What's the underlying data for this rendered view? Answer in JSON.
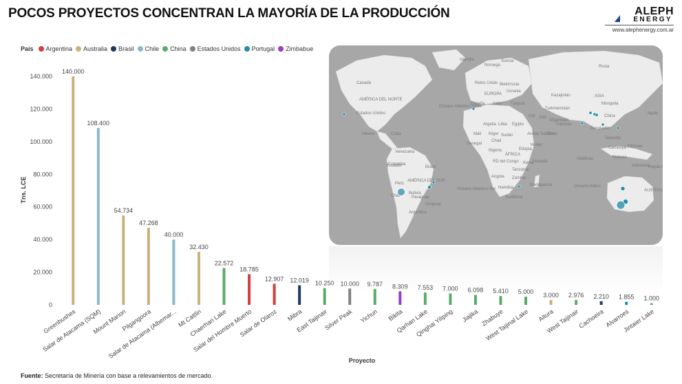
{
  "title": "POCOS PROYECTOS CONCENTRAN LA MAYORÍA DE LA PRODUCCIÓN",
  "logo": {
    "line1": "ALEPH",
    "line2": "ENERGY",
    "url": "www.alephenergy.com.ar"
  },
  "legend": {
    "title": "País",
    "items": [
      {
        "label": "Argentina",
        "color": "#d13f3f"
      },
      {
        "label": "Australia",
        "color": "#c9b27a"
      },
      {
        "label": "Brasil",
        "color": "#1f3a5f"
      },
      {
        "label": "Chile",
        "color": "#8db8c9"
      },
      {
        "label": "China",
        "color": "#5aab6b"
      },
      {
        "label": "Estados Unidos",
        "color": "#808080"
      },
      {
        "label": "Portugal",
        "color": "#1f8ca8"
      },
      {
        "label": "Zimbabue",
        "color": "#9b3bc2"
      }
    ]
  },
  "chart_data": {
    "type": "bar",
    "ylabel": "Tns. LCE",
    "xlabel": "Proyecto",
    "ylim": [
      0,
      140000
    ],
    "yticks": [
      "0",
      "20.000",
      "40.000",
      "60.000",
      "80.000",
      "100.000",
      "120.000",
      "140.000"
    ],
    "ytick_values": [
      0,
      20000,
      40000,
      60000,
      80000,
      100000,
      120000,
      140000
    ],
    "grid": false,
    "legend_position": "top-left",
    "categories": [
      "Greenbushes",
      "Salar de Atacama (SQM)",
      "Mount Marion",
      "Pilgangoora",
      "Salar de Atacama (Albemar...",
      "Mt Cattlin",
      "Chaerhan Lake",
      "Salar del Hombre Muerto",
      "Salar de Olaroz",
      "Mibra",
      "East Taijinair",
      "Silver Peak",
      "Yichun",
      "Bikita",
      "Qarhan Lake",
      "Qinghai Yiliping",
      "Jiajika",
      "Zhabuye",
      "West Taijinal Lake",
      "Altura",
      "West Taijinair",
      "Cachoeira",
      "Alvarroes",
      "Jintaier Lake"
    ],
    "values": [
      140000,
      108400,
      54734,
      47268,
      40000,
      32430,
      22572,
      18785,
      12907,
      12019,
      10250,
      10000,
      9787,
      8309,
      7553,
      7000,
      6098,
      5410,
      5000,
      3000,
      2976,
      2210,
      1855,
      1000
    ],
    "value_labels": [
      "140.000",
      "108.400",
      "54.734",
      "47.268",
      "40.000",
      "32.430",
      "22.572",
      "18.785",
      "12.907",
      "12.019",
      "10.250",
      "10.000",
      "9.787",
      "8.309",
      "7.553",
      "7.000",
      "6.098",
      "5.410",
      "5.000",
      "3.000",
      "2.976",
      "2.210",
      "1.855",
      "1.000"
    ],
    "countries": [
      "Australia",
      "Chile",
      "Australia",
      "Australia",
      "Chile",
      "Australia",
      "China",
      "Argentina",
      "Argentina",
      "Brasil",
      "China",
      "Estados Unidos",
      "China",
      "Zimbabue",
      "China",
      "China",
      "China",
      "China",
      "China",
      "Australia",
      "China",
      "Brasil",
      "Portugal",
      "China"
    ]
  },
  "map": {
    "labels": [
      "Islandia",
      "Rusia",
      "Suecia",
      "Noruega",
      "Reino Unido",
      "Bielorrusia",
      "Canadá",
      "Ucrania",
      "Kazajistán",
      "ASIA",
      "EUROPA",
      "Mongolia",
      "AMÉRICA DEL NORTE",
      "España",
      "Italia",
      "Turquía",
      "Turkmenistán",
      "Océano Atlántico Norte",
      "China",
      "Japón",
      "Estados Unidos",
      "Argelia",
      "Libia",
      "Egipto",
      "Irak",
      "Irán",
      "Afganistán",
      "Pakistán",
      "México",
      "Cuba",
      "Mali",
      "Níger",
      "Sudán",
      "Arabia Saudita",
      "Omán",
      "Bangladés",
      "Tailandia",
      "Senegal",
      "Chad",
      "Yemen",
      "Filipinas",
      "Venezuela",
      "Nigeria",
      "Etiopía",
      "Colombia",
      "Somalia",
      "Camboya",
      "Malasia",
      "Ecuador",
      "RD del Congo",
      "Kenia",
      "Indonesia",
      "ÁFRICA",
      "Tanzania",
      "Maldivas",
      "Brasil",
      "Perú",
      "Angola",
      "Papúa Nueva Guinea",
      "Bolivia",
      "AMÉRICA DEL SUR",
      "Zambia",
      "Namibia",
      "Madagascar",
      "Paraguay",
      "Océano Atlántico Sur",
      "Océano Índico",
      "AUSTRALIA",
      "Chile",
      "Sudáfrica",
      "Uruguay",
      "Argentina"
    ]
  },
  "source": {
    "label": "Fuente:",
    "text": " Secretaría de Minería con base a relevamientos de mercado."
  }
}
